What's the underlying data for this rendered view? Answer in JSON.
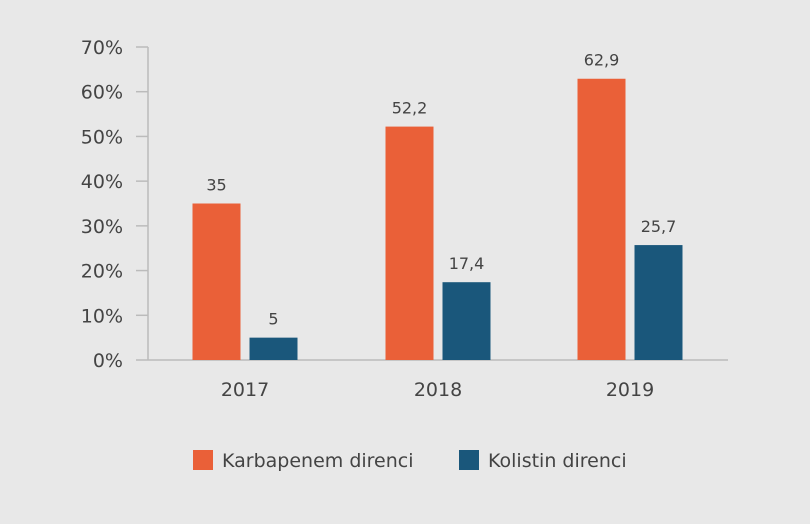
{
  "chart_data": {
    "type": "bar",
    "title": "",
    "xlabel": "",
    "ylabel": "",
    "categories": [
      "2017",
      "2018",
      "2019"
    ],
    "series": [
      {
        "name": "Karbapenem direnci",
        "color": "#ea6038",
        "values": [
          35,
          52.2,
          62.9
        ],
        "labels": [
          "35",
          "52,2",
          "62,9"
        ]
      },
      {
        "name": "Kolistin direnci",
        "color": "#1a577b",
        "values": [
          5,
          17.4,
          25.7
        ],
        "labels": [
          "5",
          "17,4",
          "25,7"
        ]
      }
    ],
    "ylim": [
      0,
      70
    ],
    "yticks": [
      0,
      10,
      20,
      30,
      40,
      50,
      60,
      70
    ],
    "ytick_labels": [
      "0%",
      "10%",
      "20%",
      "30%",
      "40%",
      "50%",
      "60%",
      "70%"
    ],
    "grid": false,
    "legend_position": "bottom"
  }
}
